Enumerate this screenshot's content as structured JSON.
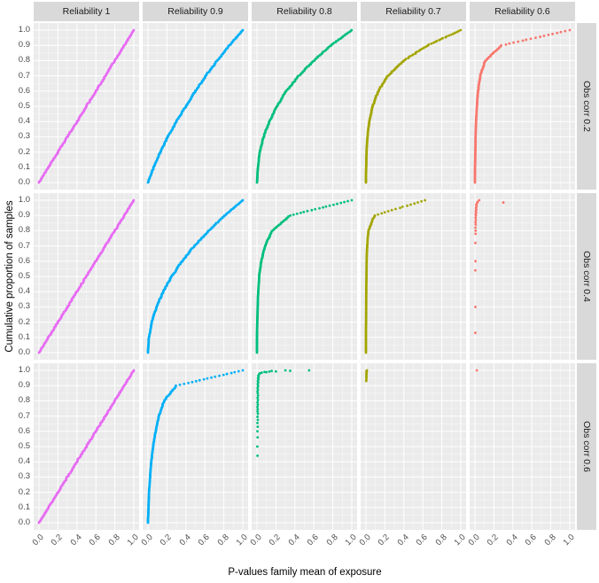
{
  "axes": {
    "x_title": "P-values family mean of exposure",
    "y_title": "Cumulative proportion of samples",
    "x_ticks": [
      "0.0",
      "0.2",
      "0.4",
      "0.6",
      "0.8",
      "1.0"
    ],
    "y_ticks": [
      "0.0",
      "0.1",
      "0.2",
      "0.3",
      "0.4",
      "0.5",
      "0.6",
      "0.7",
      "0.8",
      "0.9",
      "1.0"
    ]
  },
  "facets": {
    "columns": [
      {
        "label": "Reliability 1",
        "color": "#e76bf3"
      },
      {
        "label": "Reliability 0.9",
        "color": "#00b0f6"
      },
      {
        "label": "Reliability 0.8",
        "color": "#00bf7d"
      },
      {
        "label": "Reliability 0.7",
        "color": "#a3a500"
      },
      {
        "label": "Reliability 0.6",
        "color": "#f8766d"
      }
    ],
    "rows": [
      {
        "label": "Obs corr 0.2"
      },
      {
        "label": "Obs corr 0.4"
      },
      {
        "label": "Obs corr 0.6"
      }
    ]
  },
  "style": {
    "panel_bg": "#ebebeb",
    "grid_major": "#ffffff",
    "grid_minor": "#ffffff",
    "strip_bg": "#d9d9d9",
    "tick_text": "#4d4d4d"
  },
  "chart_data": {
    "type": "scatter",
    "subtype": "ecdf",
    "title": "",
    "xlabel": "P-values family mean of exposure",
    "ylabel": "Cumulative proportion of samples",
    "xlim": [
      0,
      1
    ],
    "ylim": [
      0,
      1
    ],
    "grid": true,
    "legend": "none",
    "facet_columns": [
      "Reliability 1",
      "Reliability 0.9",
      "Reliability 0.8",
      "Reliability 0.7",
      "Reliability 0.6"
    ],
    "facet_rows": [
      "Obs corr 0.2",
      "Obs corr 0.4",
      "Obs corr 0.6"
    ],
    "y_levels": [
      0,
      0.1,
      0.2,
      0.3,
      0.4,
      0.5,
      0.6,
      0.7,
      0.8,
      0.9,
      1.0
    ],
    "panels": [
      {
        "row": "Obs corr 0.2",
        "col": "Reliability 1",
        "kind": "quantiles",
        "n": 180,
        "x_quantiles": [
          0,
          0.1,
          0.2,
          0.3,
          0.4,
          0.5,
          0.6,
          0.7,
          0.8,
          0.9,
          1.0
        ]
      },
      {
        "row": "Obs corr 0.2",
        "col": "Reliability 0.9",
        "kind": "quantiles",
        "n": 180,
        "x_quantiles": [
          0,
          0.06,
          0.13,
          0.21,
          0.3,
          0.4,
          0.5,
          0.61,
          0.73,
          0.86,
          1.0
        ]
      },
      {
        "row": "Obs corr 0.2",
        "col": "Reliability 0.8",
        "kind": "quantiles",
        "n": 180,
        "x_quantiles": [
          0,
          0.01,
          0.03,
          0.07,
          0.13,
          0.21,
          0.31,
          0.44,
          0.6,
          0.78,
          1.0
        ]
      },
      {
        "row": "Obs corr 0.2",
        "col": "Reliability 0.7",
        "kind": "quantiles",
        "n": 170,
        "x_quantiles": [
          0,
          0.002,
          0.006,
          0.015,
          0.035,
          0.07,
          0.13,
          0.23,
          0.4,
          0.65,
          1.0
        ]
      },
      {
        "row": "Obs corr 0.2",
        "col": "Reliability 0.6",
        "kind": "quantiles",
        "n": 160,
        "x_quantiles": [
          0,
          0.002,
          0.004,
          0.007,
          0.012,
          0.02,
          0.032,
          0.055,
          0.11,
          0.28,
          1.0
        ]
      },
      {
        "row": "Obs corr 0.4",
        "col": "Reliability 1",
        "kind": "quantiles",
        "n": 180,
        "x_quantiles": [
          0,
          0.1,
          0.2,
          0.3,
          0.4,
          0.5,
          0.6,
          0.7,
          0.8,
          0.9,
          1.0
        ]
      },
      {
        "row": "Obs corr 0.4",
        "col": "Reliability 0.9",
        "kind": "quantiles",
        "n": 180,
        "x_quantiles": [
          0,
          0.01,
          0.04,
          0.09,
          0.16,
          0.25,
          0.36,
          0.49,
          0.64,
          0.81,
          1.0
        ]
      },
      {
        "row": "Obs corr 0.4",
        "col": "Reliability 0.8",
        "kind": "quantiles",
        "n": 170,
        "x_quantiles": [
          0,
          0.001,
          0.003,
          0.007,
          0.013,
          0.024,
          0.045,
          0.085,
          0.16,
          0.35,
          1.0
        ]
      },
      {
        "row": "Obs corr 0.4",
        "col": "Reliability 0.7",
        "kind": "quantiles",
        "n": 140,
        "x_quantiles": [
          0,
          0.0005,
          0.001,
          0.002,
          0.003,
          0.005,
          0.008,
          0.013,
          0.025,
          0.09,
          0.62
        ]
      },
      {
        "row": "Obs corr 0.4",
        "col": "Reliability 0.6",
        "kind": "points",
        "points": [
          [
            0.004,
            0.13
          ],
          [
            0.005,
            0.3
          ],
          [
            0.004,
            0.54
          ],
          [
            0.006,
            0.6
          ],
          [
            0.005,
            0.72
          ],
          [
            0.006,
            0.78
          ],
          [
            0.007,
            0.8
          ],
          [
            0.005,
            0.82
          ],
          [
            0.008,
            0.84
          ],
          [
            0.006,
            0.855
          ],
          [
            0.009,
            0.87
          ],
          [
            0.007,
            0.885
          ],
          [
            0.01,
            0.9
          ],
          [
            0.008,
            0.91
          ],
          [
            0.012,
            0.92
          ],
          [
            0.009,
            0.93
          ],
          [
            0.014,
            0.94
          ],
          [
            0.011,
            0.95
          ],
          [
            0.017,
            0.96
          ],
          [
            0.013,
            0.97
          ],
          [
            0.022,
            0.98
          ],
          [
            0.028,
            0.99
          ],
          [
            0.045,
            1.0
          ],
          [
            0.3,
            0.985
          ]
        ]
      },
      {
        "row": "Obs corr 0.6",
        "col": "Reliability 1",
        "kind": "quantiles",
        "n": 180,
        "x_quantiles": [
          0,
          0.1,
          0.2,
          0.3,
          0.4,
          0.5,
          0.6,
          0.7,
          0.8,
          0.9,
          1.0
        ]
      },
      {
        "row": "Obs corr 0.6",
        "col": "Reliability 0.9",
        "kind": "quantiles",
        "n": 170,
        "x_quantiles": [
          0,
          0.005,
          0.012,
          0.022,
          0.035,
          0.055,
          0.08,
          0.115,
          0.17,
          0.3,
          1.0
        ]
      },
      {
        "row": "Obs corr 0.6",
        "col": "Reliability 0.8",
        "kind": "points",
        "points": [
          [
            0.006,
            0.44
          ],
          [
            0.004,
            0.5
          ],
          [
            0.007,
            0.56
          ],
          [
            0.005,
            0.6
          ],
          [
            0.008,
            0.63
          ],
          [
            0.005,
            0.655
          ],
          [
            0.009,
            0.675
          ],
          [
            0.006,
            0.695
          ],
          [
            0.01,
            0.715
          ],
          [
            0.006,
            0.73
          ],
          [
            0.008,
            0.745
          ],
          [
            0.005,
            0.76
          ],
          [
            0.009,
            0.775
          ],
          [
            0.006,
            0.79
          ],
          [
            0.01,
            0.805
          ],
          [
            0.007,
            0.82
          ],
          [
            0.011,
            0.835
          ],
          [
            0.008,
            0.85
          ],
          [
            0.006,
            0.862
          ],
          [
            0.01,
            0.874
          ],
          [
            0.007,
            0.886
          ],
          [
            0.012,
            0.898
          ],
          [
            0.008,
            0.91
          ],
          [
            0.013,
            0.92
          ],
          [
            0.009,
            0.93
          ],
          [
            0.015,
            0.94
          ],
          [
            0.011,
            0.95
          ],
          [
            0.018,
            0.958
          ],
          [
            0.014,
            0.966
          ],
          [
            0.022,
            0.974
          ],
          [
            0.03,
            0.98
          ],
          [
            0.05,
            0.985
          ],
          [
            0.08,
            0.99
          ],
          [
            0.1,
            0.988
          ],
          [
            0.13,
            0.992
          ],
          [
            0.155,
            0.996
          ],
          [
            0.2,
            0.993
          ],
          [
            0.3,
            1.0
          ],
          [
            0.35,
            0.997
          ],
          [
            0.55,
            1.0
          ]
        ]
      },
      {
        "row": "Obs corr 0.6",
        "col": "Reliability 0.7",
        "kind": "points",
        "points": [
          [
            0.003,
            0.93
          ],
          [
            0.005,
            0.94
          ],
          [
            0.004,
            0.952
          ],
          [
            0.006,
            0.96
          ],
          [
            0.004,
            0.968
          ],
          [
            0.007,
            0.976
          ],
          [
            0.005,
            0.984
          ],
          [
            0.008,
            0.99
          ],
          [
            0.006,
            0.996
          ],
          [
            0.01,
            1.0
          ]
        ]
      },
      {
        "row": "Obs corr 0.6",
        "col": "Reliability 0.6",
        "kind": "points",
        "points": [
          [
            0.02,
            1.0
          ]
        ]
      }
    ]
  }
}
